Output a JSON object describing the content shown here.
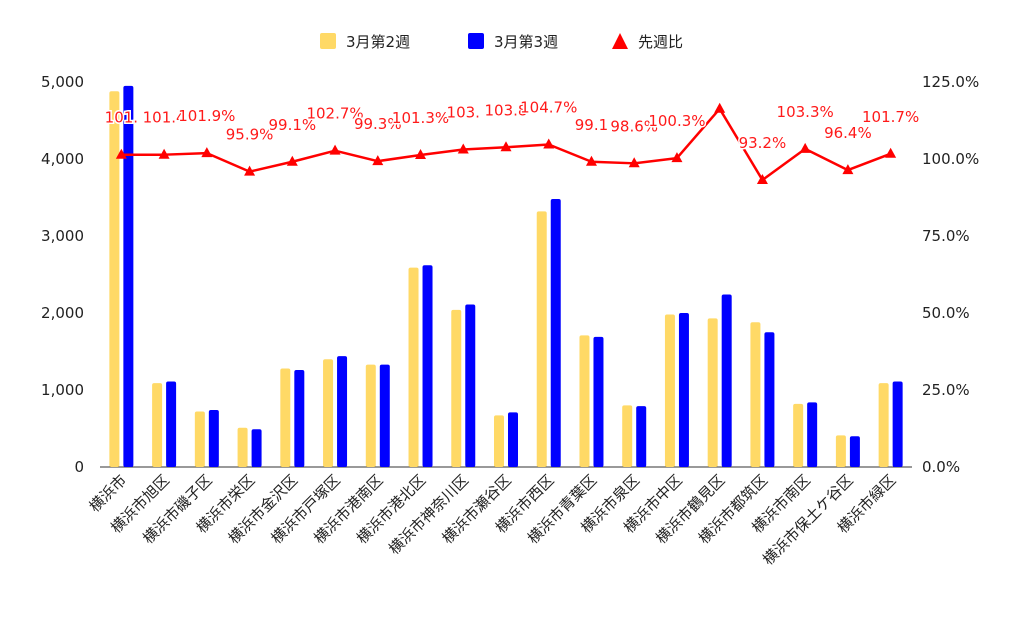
{
  "chart_data": {
    "type": "bar",
    "categories": [
      "横浜市",
      "横浜市旭区",
      "横浜市磯子区",
      "横浜市栄区",
      "横浜市金沢区",
      "横浜市戸塚区",
      "横浜市港南区",
      "横浜市港北区",
      "横浜市神奈川区",
      "横浜市瀬谷区",
      "横浜市西区",
      "横浜市青葉区",
      "横浜市泉区",
      "横浜市中区",
      "横浜市鶴見区",
      "横浜市都筑区",
      "横浜市南区",
      "横浜市保土ケ谷区",
      "横浜市緑区"
    ],
    "series": [
      {
        "name": "3月第2週",
        "type": "bar",
        "axis": "left",
        "color": "#ffd966",
        "values": [
          4880,
          1090,
          720,
          510,
          1280,
          1400,
          1330,
          2590,
          2040,
          670,
          3320,
          1710,
          800,
          1980,
          1930,
          1880,
          820,
          410,
          1090
        ]
      },
      {
        "name": "3月第3週",
        "type": "bar",
        "axis": "left",
        "color": "#0000ff",
        "values": [
          4950,
          1110,
          740,
          490,
          1260,
          1440,
          1330,
          2620,
          2110,
          710,
          3480,
          1690,
          790,
          2000,
          2240,
          1750,
          840,
          400,
          1110
        ]
      },
      {
        "name": "先週比",
        "type": "line",
        "axis": "right",
        "color": "#ff0000",
        "values": [
          101.4,
          101.4,
          101.9,
          95.9,
          99.1,
          102.7,
          99.3,
          101.3,
          103.1,
          103.8,
          104.7,
          99.1,
          98.6,
          100.3,
          116.3,
          93.2,
          103.3,
          96.4,
          101.7
        ],
        "labels": [
          "101.",
          "101.4",
          "101.9%",
          "95.9%",
          "99.1%",
          "102.7%",
          "99.3%",
          "101.3%",
          "103.",
          "103.8",
          "104.7%",
          "99.1",
          "98.6%",
          "100.3%",
          "",
          "93.2%",
          "103.3%",
          "96.4%",
          "101.7%"
        ]
      }
    ],
    "left_axis": {
      "min": 0,
      "max": 5000,
      "ticks": [
        "0",
        "1,000",
        "2,000",
        "3,000",
        "4,000",
        "5,000"
      ]
    },
    "right_axis": {
      "min": 0,
      "max": 125,
      "ticks": [
        "0.0%",
        "25.0%",
        "50.0%",
        "75.0%",
        "100.0%",
        "125.0%"
      ]
    },
    "legend": {
      "position": "top",
      "items": [
        "3月第2週",
        "3月第3週",
        "先週比"
      ]
    },
    "grid": false,
    "title": "",
    "xlabel": "",
    "ylabel": ""
  }
}
